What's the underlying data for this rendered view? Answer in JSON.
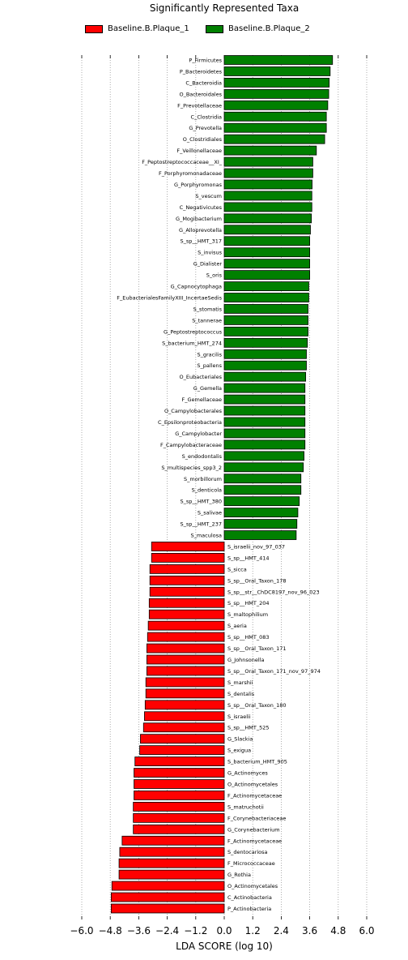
{
  "chart_data": {
    "type": "bar",
    "orientation": "horizontal",
    "title": "Significantly Represented Taxa",
    "xlabel": "LDA SCORE (log 10)",
    "xlim": [
      -6.0,
      6.0
    ],
    "xticks": [
      "−6.0",
      "−4.8",
      "−3.6",
      "−2.4",
      "−1.2",
      "0.0",
      "1.2",
      "2.4",
      "3.6",
      "4.8",
      "6.0"
    ],
    "xtick_values": [
      -6.0,
      -4.8,
      -3.6,
      -2.4,
      -1.2,
      0.0,
      1.2,
      2.4,
      3.6,
      4.8,
      6.0
    ],
    "grid": "vertical-dotted",
    "legend_position": "top",
    "legend": [
      {
        "name": "Baseline.B.Plaque_1",
        "color": "#ff0000"
      },
      {
        "name": "Baseline.B.Plaque_2",
        "color": "#008000"
      }
    ],
    "series": [
      {
        "name": "Baseline.B.Plaque_2",
        "color": "#008000",
        "categories": [
          "P_Firmicutes",
          "P_Bacteroidetes",
          "C_Bacteroidia",
          "O_Bacteroidales",
          "F_Prevotellaceae",
          "C_Clostridia",
          "G_Prevotella",
          "O_Clostridiales",
          "F_Veillonellaceae",
          "F_Peptostreptococcaceae__XI_",
          "F_Porphyromonadaceae",
          "G_Porphyromonas",
          "S_vescum",
          "C_Negativicutes",
          "G_Mogibacterium",
          "G_Alloprevotella",
          "S_sp__HMT_317",
          "S_invisus",
          "G_Dialister",
          "S_oris",
          "G_Capnocytophaga",
          "F_EubacterialesFamilyXIII_IncertaeSedis",
          "S_stomatis",
          "S_tannerae",
          "G_Peptostreptococcus",
          "S_bacterium_HMT_274",
          "S_gracilis",
          "S_pallens",
          "O_Eubacteriales",
          "G_Gemella",
          "F_Gemellaceae",
          "O_Campylobacterales",
          "C_Epsilonproteobacteria",
          "G_Campylobacter",
          "F_Campylobacteraceae",
          "S_endodontalis",
          "S_multispecies_spp3_2",
          "S_morbillorum",
          "S_denticola",
          "S_sp__HMT_380",
          "S_salivae",
          "S_sp__HMT_237",
          "S_maculosa"
        ],
        "values": [
          4.56,
          4.46,
          4.42,
          4.4,
          4.36,
          4.3,
          4.3,
          4.23,
          3.88,
          3.73,
          3.73,
          3.7,
          3.69,
          3.69,
          3.67,
          3.63,
          3.6,
          3.6,
          3.6,
          3.6,
          3.56,
          3.56,
          3.53,
          3.53,
          3.53,
          3.5,
          3.46,
          3.46,
          3.43,
          3.4,
          3.4,
          3.4,
          3.4,
          3.4,
          3.4,
          3.36,
          3.33,
          3.23,
          3.23,
          3.16,
          3.1,
          3.06,
          3.03
        ]
      },
      {
        "name": "Baseline.B.Plaque_1",
        "color": "#ff0000",
        "categories": [
          "S_israelii_nov_97_037",
          "S_sp__HMT_414",
          "S_sicca",
          "S_sp__Oral_Taxon_178",
          "S_sp__str__ChDC8197_nov_96_023",
          "S_sp__HMT_204",
          "S_maltophilium",
          "S_aeria",
          "S_sp__HMT_083",
          "S_sp__Oral_Taxon_171",
          "G_Johnsonella",
          "S_sp__Oral_Taxon_171_nov_97_974",
          "S_marshii",
          "S_dentalis",
          "S_sp__Oral_Taxon_180",
          "S_israelii",
          "S_sp__HMT_525",
          "G_Slackia",
          "S_exigua",
          "S_bacterium_HMT_905",
          "G_Actinomyces",
          "O_Actinomycetales",
          "F_Actinomycetaceae",
          "S_matruchotii",
          "F_Corynebacteriaceae",
          "G_Corynebacterium",
          "F_Actinomycetaceae",
          "S_dentocariosa",
          "F_Micrococcaceae",
          "G_Rothia",
          "O_Actinomycetales",
          "C_Actinobacteria",
          "P_Actinobacteria"
        ],
        "values": [
          -3.06,
          -3.06,
          -3.13,
          -3.13,
          -3.13,
          -3.16,
          -3.16,
          -3.2,
          -3.23,
          -3.26,
          -3.26,
          -3.26,
          -3.3,
          -3.3,
          -3.33,
          -3.36,
          -3.4,
          -3.53,
          -3.56,
          -3.76,
          -3.8,
          -3.8,
          -3.8,
          -3.83,
          -3.83,
          -3.83,
          -4.3,
          -4.4,
          -4.43,
          -4.43,
          -4.73,
          -4.76,
          -4.76
        ]
      }
    ]
  }
}
